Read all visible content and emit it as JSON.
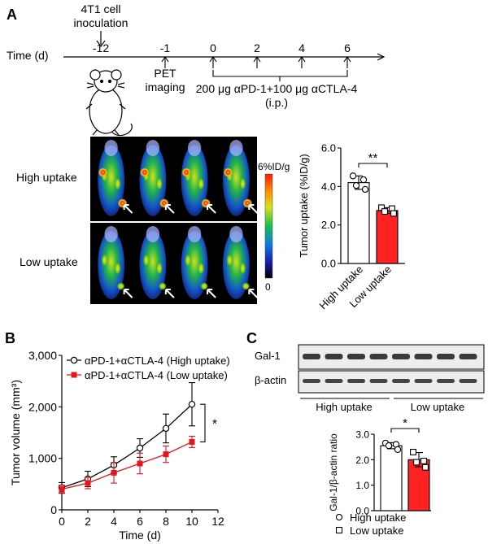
{
  "panels": {
    "a": "A",
    "b": "B",
    "c": "C"
  },
  "timeline": {
    "axis_label": "Time (d)",
    "inoculation_label": [
      "4T1 cell",
      "inoculation"
    ],
    "pet_label": [
      "PET",
      "imaging"
    ],
    "treatment_label": "200 μg αPD-1+100 μg αCTLA-4",
    "route_label": "(i.p.)",
    "ticks": [
      "-12",
      "-1",
      "0",
      "2",
      "4",
      "6"
    ]
  },
  "pet_images": {
    "row_labels": [
      "High uptake",
      "Low uptake"
    ],
    "colorbar_max": "6%ID/g",
    "colorbar_min": "0",
    "mice_per_row": 4
  },
  "chart_data": [
    {
      "id": "tumor_uptake",
      "type": "bar",
      "categories": [
        "High uptake",
        "Low uptake"
      ],
      "values": [
        4.2,
        2.75
      ],
      "errors": [
        0.35,
        0.15
      ],
      "points": [
        [
          4.55,
          4.35,
          4.05,
          3.85
        ],
        [
          2.9,
          2.85,
          2.7,
          2.6
        ]
      ],
      "bar_colors": [
        "#ffffff",
        "#ff2222"
      ],
      "ylabel": "Tumor uptake (%ID/g)",
      "ylim": [
        0,
        6
      ],
      "yticks": [
        "0.0",
        "2.0",
        "4.0",
        "6.0"
      ],
      "significance": "**"
    },
    {
      "id": "tumor_volume",
      "type": "line",
      "xlabel": "Time (d)",
      "ylabel": "Tumor volume (mm³)",
      "xlim": [
        0,
        12
      ],
      "ylim": [
        0,
        3000
      ],
      "xticks": [
        "0",
        "2",
        "4",
        "6",
        "8",
        "10",
        "12"
      ],
      "yticks": [
        "0",
        "1,000",
        "2,000",
        "3,000"
      ],
      "series": [
        {
          "name": "αPD-1+αCTLA-4 (High uptake)",
          "color": "#000000",
          "marker": "open-circle",
          "x": [
            0,
            2,
            4,
            6,
            8,
            10
          ],
          "y": [
            430,
            600,
            870,
            1200,
            1580,
            2050
          ],
          "err": [
            100,
            150,
            160,
            180,
            280,
            420
          ]
        },
        {
          "name": "αPD-1+αCTLA-4 (Low uptake)",
          "color": "#e8141b",
          "marker": "filled-square",
          "x": [
            0,
            2,
            4,
            6,
            8,
            10
          ],
          "y": [
            400,
            520,
            720,
            900,
            1080,
            1320
          ],
          "err": [
            80,
            110,
            200,
            200,
            160,
            110
          ]
        }
      ],
      "significance": "*"
    },
    {
      "id": "gal1_ratio",
      "type": "bar",
      "categories": [
        "High uptake",
        "Low uptake"
      ],
      "values": [
        2.55,
        2.0
      ],
      "errors": [
        0.12,
        0.28
      ],
      "points": [
        [
          2.65,
          2.6,
          2.55,
          2.4
        ],
        [
          2.3,
          1.95,
          1.9,
          1.7
        ]
      ],
      "bar_colors": [
        "#ffffff",
        "#ff2222"
      ],
      "ylabel": "Gal-1/β-actin ratio",
      "ylim": [
        0,
        3
      ],
      "yticks": [
        "0.0",
        "1.0",
        "2.0",
        "3.0"
      ],
      "significance": "*",
      "legend": [
        {
          "marker": "open-circle",
          "label": "High uptake"
        },
        {
          "marker": "open-square",
          "label": "Low uptake"
        }
      ]
    }
  ],
  "western": {
    "rows": [
      "Gal-1",
      "β-actin"
    ],
    "groups": [
      "High uptake",
      "Low uptake"
    ],
    "lanes": 8
  }
}
